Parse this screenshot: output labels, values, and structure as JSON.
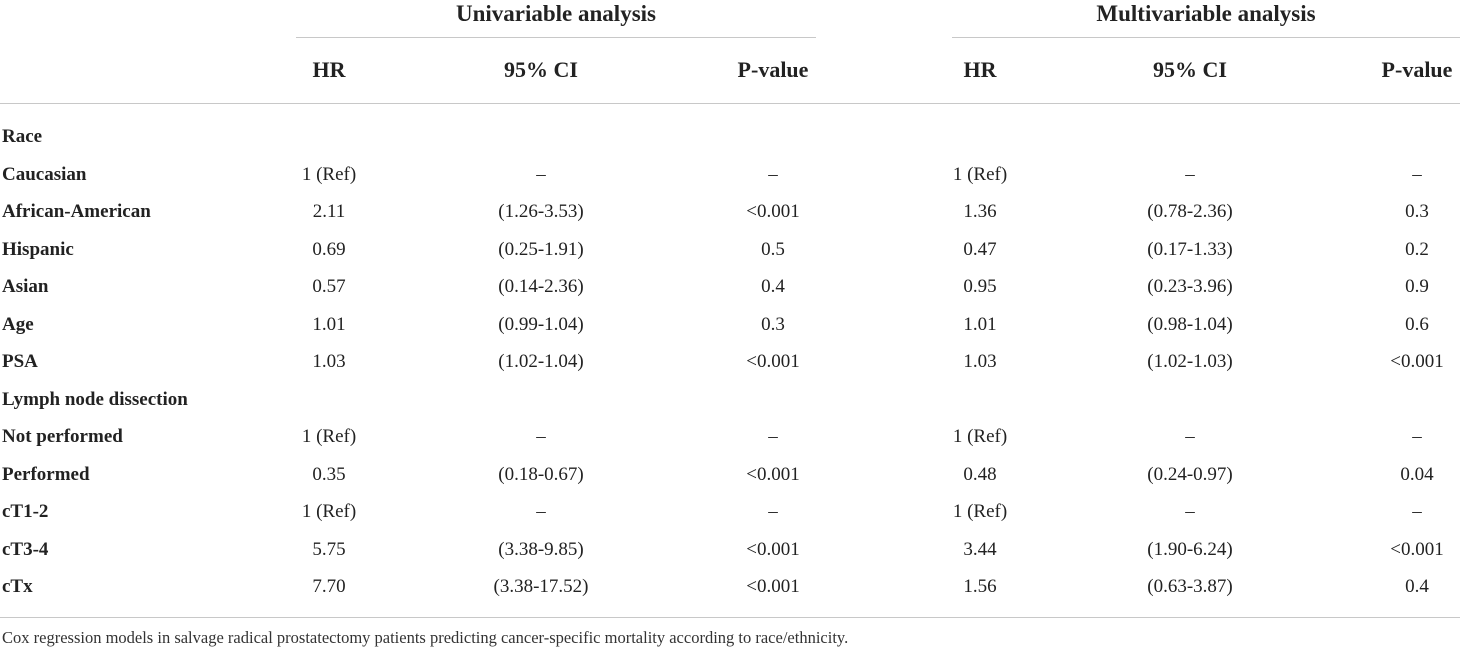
{
  "table": {
    "groups": [
      {
        "label": "Univariable analysis"
      },
      {
        "label": "Multivariable analysis"
      }
    ],
    "columns": [
      "HR",
      "95% CI",
      "P-value",
      "HR",
      "95% CI",
      "P-value"
    ],
    "rows": [
      {
        "label": "Race",
        "cells": [
          "",
          "",
          "",
          "",
          "",
          ""
        ]
      },
      {
        "label": "Caucasian",
        "cells": [
          "1 (Ref)",
          "–",
          "–",
          "1 (Ref)",
          "–",
          "–"
        ]
      },
      {
        "label": "African-American",
        "cells": [
          "2.11",
          "(1.26-3.53)",
          "<0.001",
          "1.36",
          "(0.78-2.36)",
          "0.3"
        ]
      },
      {
        "label": "Hispanic",
        "cells": [
          "0.69",
          "(0.25-1.91)",
          "0.5",
          "0.47",
          "(0.17-1.33)",
          "0.2"
        ]
      },
      {
        "label": "Asian",
        "cells": [
          "0.57",
          "(0.14-2.36)",
          "0.4",
          "0.95",
          "(0.23-3.96)",
          "0.9"
        ]
      },
      {
        "label": "Age",
        "cells": [
          "1.01",
          "(0.99-1.04)",
          "0.3",
          "1.01",
          "(0.98-1.04)",
          "0.6"
        ]
      },
      {
        "label": "PSA",
        "cells": [
          "1.03",
          "(1.02-1.04)",
          "<0.001",
          "1.03",
          "(1.02-1.03)",
          "<0.001"
        ]
      },
      {
        "label": "Lymph node dissection",
        "cells": [
          "",
          "",
          "",
          "",
          "",
          ""
        ]
      },
      {
        "label": "Not performed",
        "cells": [
          "1 (Ref)",
          "–",
          "–",
          "1 (Ref)",
          "–",
          "–"
        ]
      },
      {
        "label": "Performed",
        "cells": [
          "0.35",
          "(0.18-0.67)",
          "<0.001",
          "0.48",
          "(0.24-0.97)",
          "0.04"
        ]
      },
      {
        "label": "cT1-2",
        "cells": [
          "1 (Ref)",
          "–",
          "–",
          "1 (Ref)",
          "–",
          "–"
        ]
      },
      {
        "label": "cT3-4",
        "cells": [
          "5.75",
          "(3.38-9.85)",
          "<0.001",
          "3.44",
          "(1.90-6.24)",
          "<0.001"
        ]
      },
      {
        "label": "cTx",
        "cells": [
          "7.70",
          "(3.38-17.52)",
          "<0.001",
          "1.56",
          "(0.63-3.87)",
          "0.4"
        ]
      }
    ],
    "caption": "Cox regression models in salvage radical prostatectomy patients predicting cancer-specific mortality according to race/ethnicity."
  }
}
